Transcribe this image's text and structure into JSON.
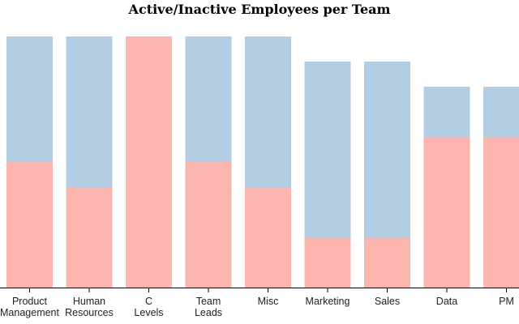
{
  "chart_data": {
    "type": "bar",
    "stacked": true,
    "title": "Active/Inactive Employees per Team",
    "xlabel": "",
    "ylabel": "",
    "grid": false,
    "legend": "none",
    "ylim": [
      0,
      10
    ],
    "categories": [
      [
        "Product",
        "Management"
      ],
      [
        "Human",
        "Resources"
      ],
      [
        "C",
        "Levels"
      ],
      [
        "Team",
        "Leads"
      ],
      [
        "Misc"
      ],
      [
        "Marketing"
      ],
      [
        "Sales"
      ],
      [
        "Data"
      ],
      [
        "PM"
      ]
    ],
    "series": [
      {
        "key": "lower",
        "color": "#fbb4ae",
        "values": [
          5,
          4,
          10,
          5,
          4,
          2,
          2,
          6,
          6
        ]
      },
      {
        "key": "upper",
        "color": "#b3cde3",
        "values": [
          5,
          6,
          0,
          5,
          6,
          7,
          7,
          2,
          2
        ]
      }
    ]
  }
}
